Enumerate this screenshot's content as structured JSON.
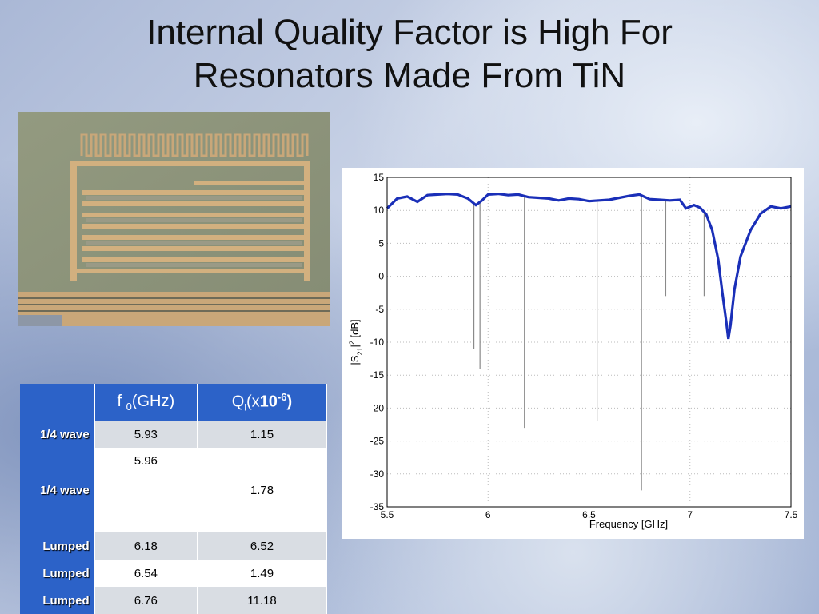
{
  "slide": {
    "title_line1": "Internal Quality Factor is High For",
    "title_line2": "Resonators Made From TiN"
  },
  "table": {
    "header_f": "f",
    "header_f_sub": "0",
    "header_f_unit": "(GHz)",
    "header_q": "Q",
    "header_q_sub": "i",
    "header_q_open": "(x",
    "header_q_exp_base": "10",
    "header_q_exp": "-6",
    "header_q_close": ")",
    "rows": [
      {
        "label": "1/4 wave",
        "f0": "5.93",
        "qi": "1.15"
      },
      {
        "label": "1/4 wave",
        "f0": "5.96",
        "qi": "1.78"
      },
      {
        "label": "Lumped",
        "f0": "6.18",
        "qi": "6.52"
      },
      {
        "label": "Lumped",
        "f0": "6.54",
        "qi": "1.49"
      },
      {
        "label": "Lumped",
        "f0": "6.76",
        "qi": "11.18"
      }
    ]
  },
  "colors": {
    "table_header": "#2c62c8",
    "trace": "#1a2fb8",
    "resonance_lines": "#8a8a8a"
  },
  "chart_data": {
    "type": "line",
    "xlabel": "Frequency [GHz]",
    "ylabel": "|S21|2 [dB]",
    "xlim": [
      5.5,
      7.5
    ],
    "ylim": [
      -35,
      15
    ],
    "xticks": [
      5.5,
      6,
      6.5,
      7,
      7.5
    ],
    "yticks": [
      15,
      10,
      5,
      0,
      -5,
      -10,
      -15,
      -20,
      -25,
      -30,
      -35
    ],
    "grid": true,
    "series": [
      {
        "x": [
          5.5,
          5.55,
          5.6,
          5.65,
          5.7,
          5.75,
          5.8,
          5.85,
          5.9,
          5.94,
          5.97,
          6.0,
          6.05,
          6.1,
          6.15,
          6.2,
          6.25,
          6.3,
          6.35,
          6.4,
          6.45,
          6.5,
          6.55,
          6.6,
          6.65,
          6.7,
          6.75,
          6.8,
          6.85,
          6.9,
          6.95,
          6.98,
          7.02,
          7.05,
          7.08,
          7.11,
          7.14,
          7.16,
          7.18,
          7.19,
          7.2,
          7.22,
          7.25,
          7.3,
          7.35,
          7.4,
          7.45,
          7.5
        ],
        "y": [
          10.3,
          11.8,
          12.1,
          11.3,
          12.3,
          12.4,
          12.5,
          12.4,
          11.8,
          10.8,
          11.5,
          12.4,
          12.5,
          12.3,
          12.4,
          12.0,
          11.9,
          11.8,
          11.5,
          11.8,
          11.7,
          11.4,
          11.5,
          11.6,
          11.9,
          12.2,
          12.4,
          11.7,
          11.6,
          11.5,
          11.6,
          10.3,
          10.8,
          10.4,
          9.4,
          7.0,
          2.5,
          -2.5,
          -7.0,
          -9.5,
          -7.5,
          -2.0,
          3.0,
          7.0,
          9.5,
          10.6,
          10.3,
          10.6
        ]
      }
    ],
    "resonances": [
      {
        "x": 5.93,
        "y_min": -11
      },
      {
        "x": 5.96,
        "y_min": -14
      },
      {
        "x": 6.18,
        "y_min": -23
      },
      {
        "x": 6.54,
        "y_min": -22
      },
      {
        "x": 6.76,
        "y_min": -32.5
      },
      {
        "x": 6.88,
        "y_min": -3
      },
      {
        "x": 7.07,
        "y_min": -3
      }
    ]
  }
}
